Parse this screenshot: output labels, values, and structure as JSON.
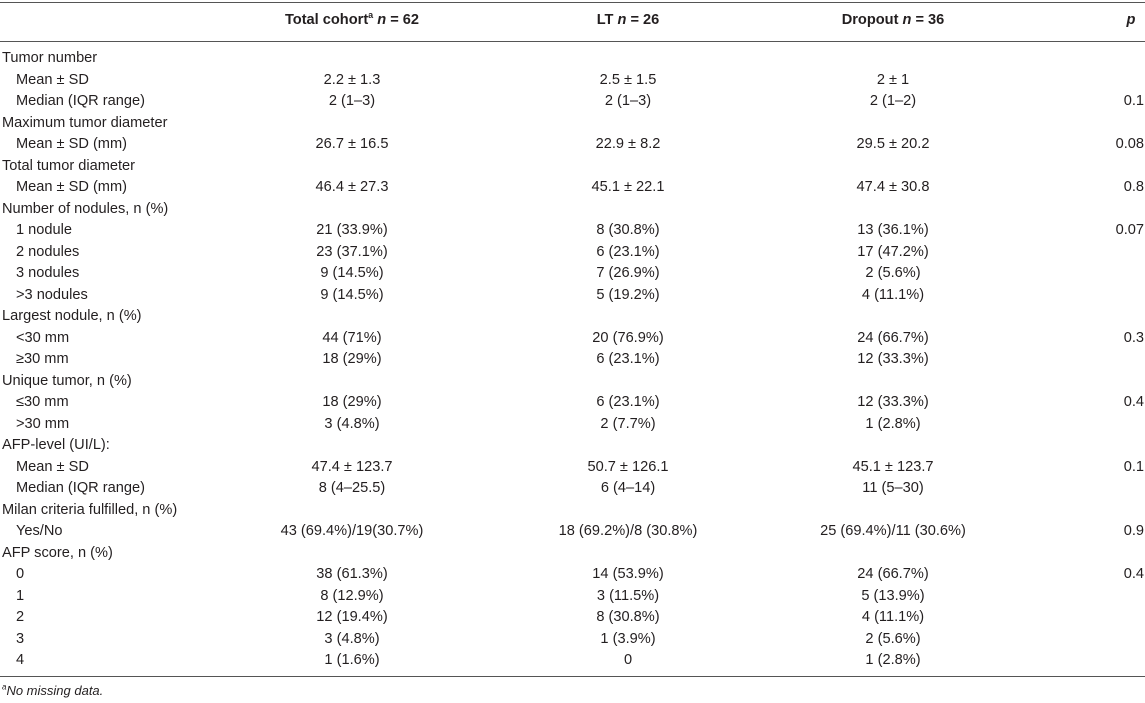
{
  "header": {
    "total_label": "Total cohort",
    "total_sup": "a",
    "total_n": "n",
    "total_count": " = 62",
    "lt_label": "LT ",
    "lt_n": "n",
    "lt_count": " = 26",
    "dropout_label": "Dropout ",
    "dropout_n": "n",
    "dropout_count": " = 36",
    "p_label": "p"
  },
  "rows": [
    {
      "label": "Tumor number",
      "indent": false,
      "total": "",
      "lt": "",
      "dropout": "",
      "p": ""
    },
    {
      "label": "Mean ± SD",
      "indent": true,
      "total": "2.2 ± 1.3",
      "lt": "2.5 ± 1.5",
      "dropout": "2 ± 1",
      "p": ""
    },
    {
      "label": "Median (IQR range)",
      "indent": true,
      "total": "2 (1–3)",
      "lt": "2 (1–3)",
      "dropout": "2 (1–2)",
      "p": "0.1"
    },
    {
      "label": "Maximum tumor diameter",
      "indent": false,
      "total": "",
      "lt": "",
      "dropout": "",
      "p": ""
    },
    {
      "label": "Mean ± SD (mm)",
      "indent": true,
      "total": "26.7 ± 16.5",
      "lt": "22.9 ± 8.2",
      "dropout": "29.5 ± 20.2",
      "p": "0.08"
    },
    {
      "label": "Total tumor diameter",
      "indent": false,
      "total": "",
      "lt": "",
      "dropout": "",
      "p": ""
    },
    {
      "label": "Mean ± SD (mm)",
      "indent": true,
      "total": "46.4 ± 27.3",
      "lt": "45.1 ± 22.1",
      "dropout": "47.4 ± 30.8",
      "p": "0.8"
    },
    {
      "label": "Number of nodules, n (%)",
      "indent": false,
      "total": "",
      "lt": "",
      "dropout": "",
      "p": ""
    },
    {
      "label": "1 nodule",
      "indent": true,
      "total": "21 (33.9%)",
      "lt": "8 (30.8%)",
      "dropout": "13 (36.1%)",
      "p": "0.07"
    },
    {
      "label": "2 nodules",
      "indent": true,
      "total": "23 (37.1%)",
      "lt": "6 (23.1%)",
      "dropout": "17 (47.2%)",
      "p": ""
    },
    {
      "label": "3 nodules",
      "indent": true,
      "total": "9 (14.5%)",
      "lt": "7 (26.9%)",
      "dropout": "2 (5.6%)",
      "p": ""
    },
    {
      "label": ">3 nodules",
      "indent": true,
      "total": "9 (14.5%)",
      "lt": "5 (19.2%)",
      "dropout": "4 (11.1%)",
      "p": ""
    },
    {
      "label": "Largest nodule, n (%)",
      "indent": false,
      "total": "",
      "lt": "",
      "dropout": "",
      "p": ""
    },
    {
      "label": "<30 mm",
      "indent": true,
      "total": "44 (71%)",
      "lt": "20 (76.9%)",
      "dropout": "24 (66.7%)",
      "p": "0.3"
    },
    {
      "label": "≥30 mm",
      "indent": true,
      "total": "18 (29%)",
      "lt": "6 (23.1%)",
      "dropout": "12 (33.3%)",
      "p": ""
    },
    {
      "label": "Unique tumor, n (%)",
      "indent": false,
      "total": "",
      "lt": "",
      "dropout": "",
      "p": ""
    },
    {
      "label": "≤30 mm",
      "indent": true,
      "total": "18 (29%)",
      "lt": "6 (23.1%)",
      "dropout": "12 (33.3%)",
      "p": "0.4"
    },
    {
      "label": ">30 mm",
      "indent": true,
      "total": "3 (4.8%)",
      "lt": "2 (7.7%)",
      "dropout": "1 (2.8%)",
      "p": ""
    },
    {
      "label": "AFP-level (UI/L):",
      "indent": false,
      "total": "",
      "lt": "",
      "dropout": "",
      "p": ""
    },
    {
      "label": "Mean ± SD",
      "indent": true,
      "total": "47.4 ± 123.7",
      "lt": "50.7 ± 126.1",
      "dropout": "45.1 ± 123.7",
      "p": "0.1"
    },
    {
      "label": "Median (IQR range)",
      "indent": true,
      "total": "8 (4–25.5)",
      "lt": "6 (4–14)",
      "dropout": "11 (5–30)",
      "p": ""
    },
    {
      "label": "Milan criteria fulfilled, n (%)",
      "indent": false,
      "total": "",
      "lt": "",
      "dropout": "",
      "p": ""
    },
    {
      "label": "Yes/No",
      "indent": true,
      "total": "43 (69.4%)/19(30.7%)",
      "lt": "18 (69.2%)/8 (30.8%)",
      "dropout": "25 (69.4%)/11 (30.6%)",
      "p": "0.9"
    },
    {
      "label": "AFP score, n (%)",
      "indent": false,
      "total": "",
      "lt": "",
      "dropout": "",
      "p": ""
    },
    {
      "label": "0",
      "indent": true,
      "total": "38 (61.3%)",
      "lt": "14 (53.9%)",
      "dropout": "24 (66.7%)",
      "p": "0.4"
    },
    {
      "label": "1",
      "indent": true,
      "total": "8 (12.9%)",
      "lt": "3 (11.5%)",
      "dropout": "5 (13.9%)",
      "p": ""
    },
    {
      "label": "2",
      "indent": true,
      "total": "12 (19.4%)",
      "lt": "8 (30.8%)",
      "dropout": "4 (11.1%)",
      "p": ""
    },
    {
      "label": "3",
      "indent": true,
      "total": "3 (4.8%)",
      "lt": "1 (3.9%)",
      "dropout": "2 (5.6%)",
      "p": ""
    },
    {
      "label": "4",
      "indent": true,
      "total": "1 (1.6%)",
      "lt": "0",
      "dropout": "1 (2.8%)",
      "p": ""
    }
  ],
  "footnote": {
    "marker": "a",
    "text": "No missing data."
  }
}
